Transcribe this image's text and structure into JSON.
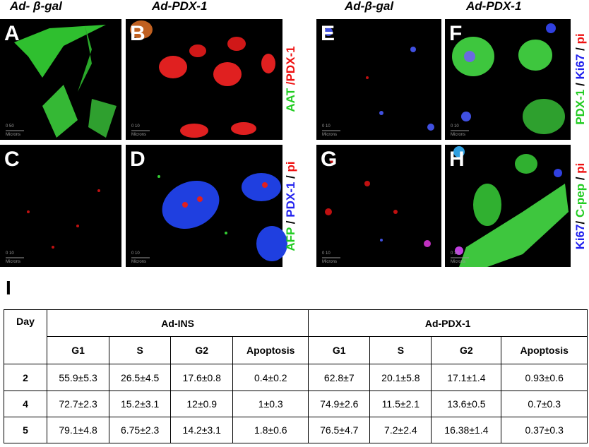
{
  "column_headers": [
    "Ad- β-gal",
    "Ad-PDX-1",
    "Ad-β-gal",
    "Ad-PDX-1"
  ],
  "panels": [
    {
      "letter": "A",
      "scale": "0     50",
      "unit": "Microns"
    },
    {
      "letter": "B",
      "scale": "0   10",
      "unit": "Microns"
    },
    {
      "letter": "C",
      "scale": "0   10",
      "unit": "Microns"
    },
    {
      "letter": "D",
      "scale": "0   10",
      "unit": "Microns"
    },
    {
      "letter": "E",
      "scale": "0   10",
      "unit": "Microns"
    },
    {
      "letter": "F",
      "scale": "0   10",
      "unit": "Microns"
    },
    {
      "letter": "G",
      "scale": "0   10",
      "unit": "Microns"
    },
    {
      "letter": "H",
      "scale": "0   10",
      "unit": "Microns"
    }
  ],
  "side_labels": [
    [
      {
        "text": "AAT ",
        "color": "#22cc22"
      },
      {
        "text": "/PDX-1",
        "color": "#ee1111"
      }
    ],
    [
      {
        "text": "AFP ",
        "color": "#22cc22"
      },
      {
        "text": "/ ",
        "color": "#000000"
      },
      {
        "text": "PDX-1 ",
        "color": "#2222ee"
      },
      {
        "text": "/ ",
        "color": "#000000"
      },
      {
        "text": "pi",
        "color": "#ee1111"
      }
    ],
    [
      {
        "text": "PDX-1 ",
        "color": "#22cc22"
      },
      {
        "text": "/ ",
        "color": "#000000"
      },
      {
        "text": "Ki67 ",
        "color": "#2222ee"
      },
      {
        "text": "/ ",
        "color": "#000000"
      },
      {
        "text": "pi",
        "color": "#ee1111"
      }
    ],
    [
      {
        "text": "Ki67",
        "color": "#2222ee"
      },
      {
        "text": "/ ",
        "color": "#000000"
      },
      {
        "text": "C-pep ",
        "color": "#22cc22"
      },
      {
        "text": "/ ",
        "color": "#000000"
      },
      {
        "text": "pi",
        "color": "#ee1111"
      }
    ]
  ],
  "table": {
    "label": "I",
    "day_header": "Day",
    "groups": [
      "Ad-INS",
      "Ad-PDX-1"
    ],
    "phases": [
      "G1",
      "S",
      "G2",
      "Apoptosis",
      "G1",
      "S",
      "G2",
      "Apoptosis"
    ],
    "rows": [
      [
        "2",
        "55.9±5.3",
        "26.5±4.5",
        "17.6±0.8",
        "0.4±0.2",
        "62.8±7",
        "20.1±5.8",
        "17.1±1.4",
        "0.93±0.6"
      ],
      [
        "4",
        "72.7±2.3",
        "15.2±3.1",
        "12±0.9",
        "1±0.3",
        "74.9±2.6",
        "11.5±2.1",
        "13.6±0.5",
        "0.7±0.3"
      ],
      [
        "5",
        "79.1±4.8",
        "6.75±2.3",
        "14.2±3.1",
        "1.8±0.6",
        "76.5±4.7",
        "7.2±2.4",
        "16.38±1.4",
        "0.37±0.3"
      ]
    ]
  }
}
